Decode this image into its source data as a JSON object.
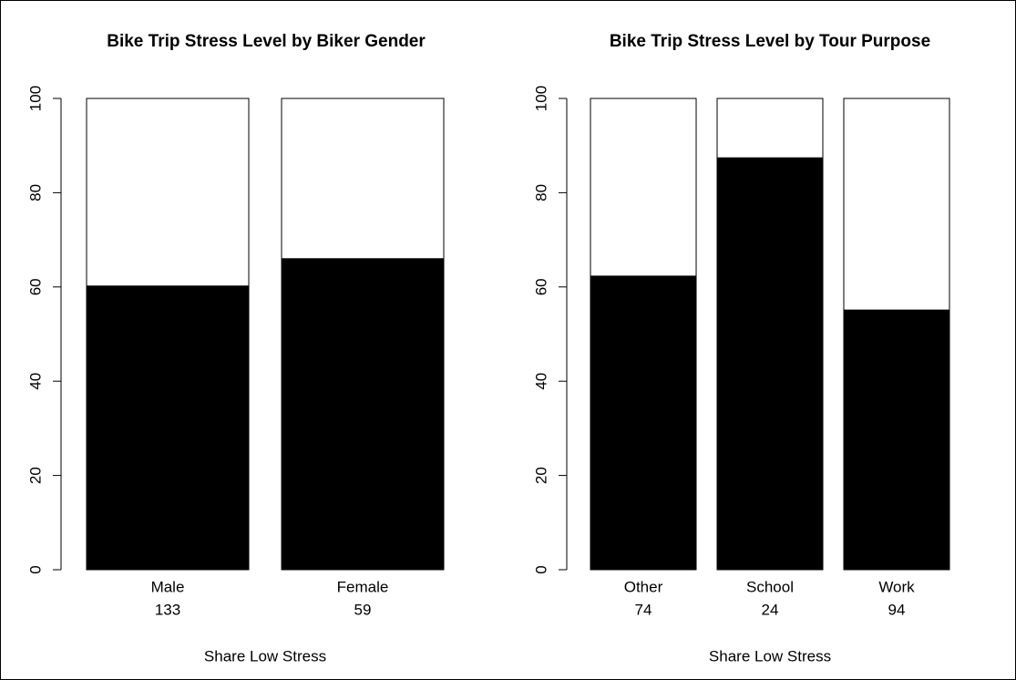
{
  "chart_data": [
    {
      "type": "bar",
      "stacked": true,
      "title": "Bike Trip Stress Level by Biker Gender",
      "categories": [
        "Male",
        "Female"
      ],
      "n": [
        133,
        59
      ],
      "xlabel": "Share Low Stress",
      "series": [
        {
          "color": "#000000",
          "values": [
            60.2,
            66.0
          ]
        },
        {
          "color": "#ffffff",
          "values": [
            39.8,
            34.0
          ]
        }
      ],
      "ylim": [
        0,
        100
      ],
      "yticks": [
        0,
        20,
        40,
        60,
        80,
        100
      ]
    },
    {
      "type": "bar",
      "stacked": true,
      "title": "Bike Trip Stress Level by Tour Purpose",
      "categories": [
        "Other",
        "School",
        "Work"
      ],
      "n": [
        74,
        24,
        94
      ],
      "xlabel": "Share Low Stress",
      "series": [
        {
          "color": "#000000",
          "values": [
            62.3,
            87.4,
            55.1
          ]
        },
        {
          "color": "#ffffff",
          "values": [
            37.7,
            12.6,
            44.9
          ]
        }
      ],
      "ylim": [
        0,
        100
      ],
      "yticks": [
        0,
        20,
        40,
        60,
        80,
        100
      ]
    }
  ]
}
